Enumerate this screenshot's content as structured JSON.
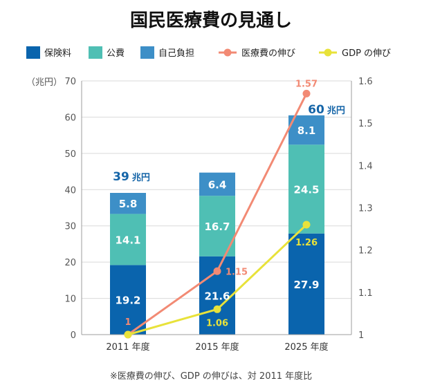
{
  "colors": {
    "insurance": "#0a64ad",
    "public": "#4fbfb4",
    "self": "#3d8fc7",
    "medical_growth": "#f28a74",
    "gdp_growth": "#e8e23a",
    "grid": "#d9d9d9",
    "axis": "#9e9e9e",
    "total_text": "#1565a8"
  },
  "chart_data": {
    "type": "bar",
    "title": "国民医療費の見通し",
    "categories": [
      "2011 年度",
      "2015 年度",
      "2025 年度"
    ],
    "series": [
      {
        "name": "保険料",
        "kind": "bar",
        "color_key": "insurance",
        "values": [
          19.2,
          21.6,
          27.9
        ]
      },
      {
        "name": "公費",
        "kind": "bar",
        "color_key": "public",
        "values": [
          14.1,
          16.7,
          24.5
        ]
      },
      {
        "name": "自己負担",
        "kind": "bar",
        "color_key": "self",
        "values": [
          5.8,
          6.4,
          8.1
        ]
      },
      {
        "name": "医療費の伸び",
        "kind": "line",
        "axis": "right",
        "color_key": "medical_growth",
        "values": [
          1,
          1.15,
          1.57
        ],
        "labels": [
          "1",
          "1.15",
          "1.57"
        ]
      },
      {
        "name": "GDP の伸び",
        "kind": "line",
        "axis": "right",
        "color_key": "gdp_growth",
        "values": [
          1,
          1.06,
          1.26
        ],
        "labels": [
          "1",
          "1.06",
          "1.26"
        ]
      }
    ],
    "totals": [
      {
        "number": "39",
        "unit": "兆円"
      },
      null,
      {
        "number": "60",
        "unit": "兆円"
      }
    ],
    "y_left": {
      "unit": "（兆円）",
      "lim": [
        0,
        70
      ],
      "ticks": [
        0,
        10,
        20,
        30,
        40,
        50,
        60,
        70
      ]
    },
    "y_right": {
      "lim": [
        1,
        1.6
      ],
      "ticks": [
        "1",
        "1.1",
        "1.2",
        "1.3",
        "1.4",
        "1.5",
        "1.6"
      ]
    },
    "grid": true,
    "legend_position": "top",
    "footnote": "※医療費の伸び、GDP の伸びは、対 2011 年度比"
  }
}
